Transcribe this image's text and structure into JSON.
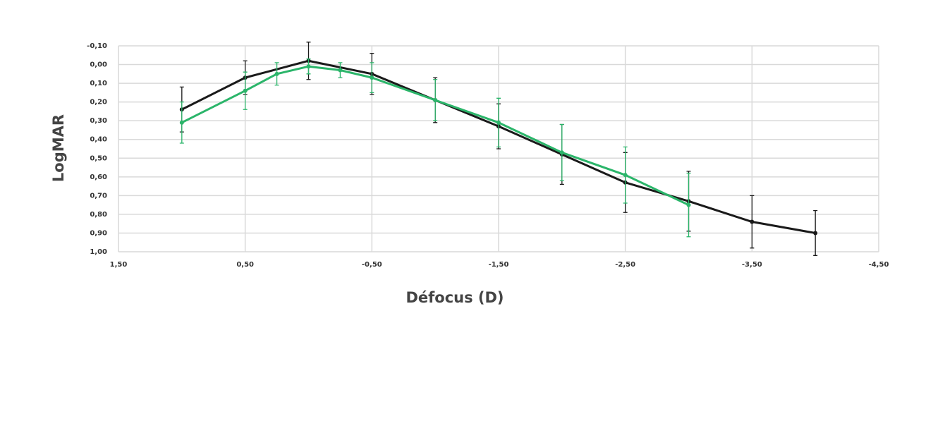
{
  "chart_data": {
    "type": "line",
    "x_label": "Défocus (D)",
    "y_label": "LogMAR",
    "xlim": [
      1.5,
      -4.5
    ],
    "xticks": [
      {
        "value": 1.5,
        "label": "1,50"
      },
      {
        "value": 0.5,
        "label": "0,50"
      },
      {
        "value": -0.5,
        "label": "-0,50"
      },
      {
        "value": -1.5,
        "label": "-1,50"
      },
      {
        "value": -2.5,
        "label": "-2,50"
      },
      {
        "value": -3.5,
        "label": "-3,50"
      },
      {
        "value": -4.5,
        "label": "-4,50"
      }
    ],
    "ylim": [
      1.0,
      -0.1
    ],
    "yticks": [
      {
        "value": -0.1,
        "label": "-0,10"
      },
      {
        "value": 0,
        "label": "0,00"
      },
      {
        "value": 0.1,
        "label": "0,10"
      },
      {
        "value": 0.2,
        "label": "0,20"
      },
      {
        "value": 0.3,
        "label": "0,30"
      },
      {
        "value": 0.4,
        "label": "0,40"
      },
      {
        "value": 0.5,
        "label": "0,50"
      },
      {
        "value": 0.6,
        "label": "0,60"
      },
      {
        "value": 0.7,
        "label": "0,70"
      },
      {
        "value": 0.8,
        "label": "0,80"
      },
      {
        "value": 0.9,
        "label": "0,90"
      },
      {
        "value": 1.0,
        "label": "1,00"
      }
    ],
    "grid": true,
    "series": [
      {
        "color": "#1a1a1a",
        "x": [
          1.0,
          0.5,
          0,
          -0.5,
          -1.0,
          -1.5,
          -2.0,
          -2.5,
          -3.0,
          -3.5,
          -4.0
        ],
        "values": [
          0.24,
          0.07,
          -0.02,
          0.05,
          0.19,
          0.33,
          0.48,
          0.63,
          0.73,
          0.84,
          0.9
        ],
        "errors": [
          0.12,
          0.09,
          0.1,
          0.11,
          0.12,
          0.12,
          0.16,
          0.16,
          0.16,
          0.14,
          0.12
        ]
      },
      {
        "color": "#2bb56a",
        "x": [
          1.0,
          0.5,
          0.25,
          0,
          -0.25,
          -0.5,
          -1.0,
          -1.5,
          -2.0,
          -2.5,
          -3.0
        ],
        "values": [
          0.31,
          0.14,
          0.05,
          0.01,
          0.03,
          0.07,
          0.19,
          0.31,
          0.47,
          0.59,
          0.75
        ],
        "errors": [
          0.11,
          0.1,
          0.06,
          0.04,
          0.04,
          0.08,
          0.11,
          0.13,
          0.15,
          0.15,
          0.17
        ]
      }
    ]
  }
}
